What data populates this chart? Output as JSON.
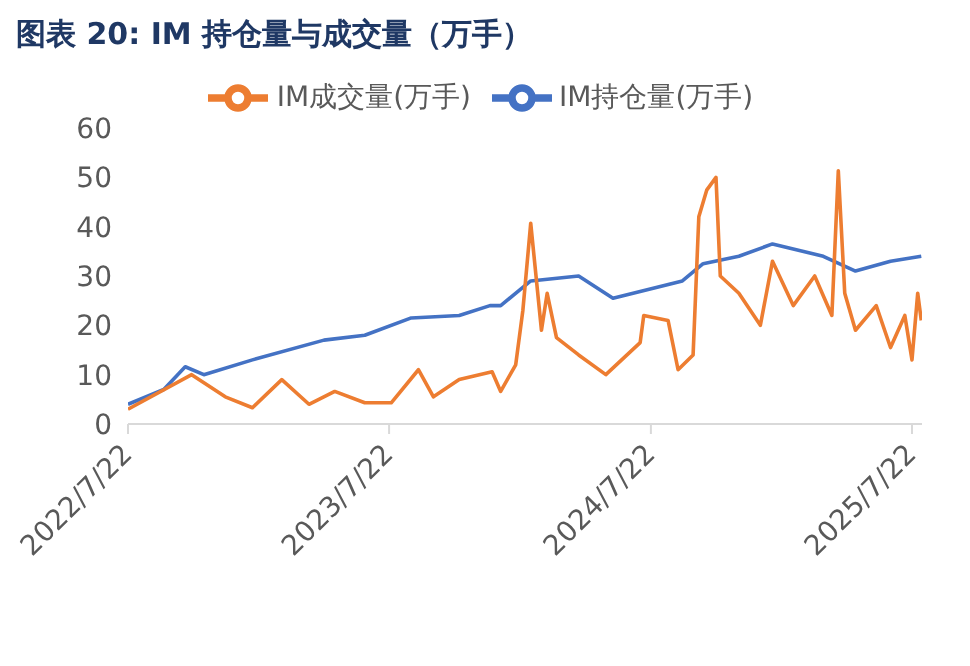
{
  "chart_data": {
    "type": "line",
    "title": "图表 20:  IM 持仓量与成交量（万手）",
    "xlim": [
      "2022-07-22",
      "2025-08-05"
    ],
    "xticks": [
      {
        "value": "2022-07-22",
        "label": "2022/7/22"
      },
      {
        "value": "2023-07-22",
        "label": "2023/7/22"
      },
      {
        "value": "2024-07-22",
        "label": "2024/7/22"
      },
      {
        "value": "2025-07-22",
        "label": "2025/7/22"
      }
    ],
    "ylim": [
      0,
      60
    ],
    "yticks": [
      0,
      10,
      20,
      30,
      40,
      50,
      60
    ],
    "grid": false,
    "legend": "top",
    "marker": "none",
    "series": [
      {
        "name": "IM持仓量(万手)",
        "color": "#4472c4",
        "x": [
          "2022-07-22",
          "2022-09-10",
          "2022-10-10",
          "2022-11-05",
          "2023-01-12",
          "2023-04-22",
          "2023-06-18",
          "2023-08-22",
          "2023-10-28",
          "2023-12-10",
          "2023-12-25",
          "2024-02-05",
          "2024-04-12",
          "2024-05-30",
          "2024-09-04",
          "2024-10-03",
          "2024-11-22",
          "2025-01-08",
          "2025-03-20",
          "2025-05-04",
          "2025-06-22",
          "2025-08-04"
        ],
        "values": [
          4,
          7,
          11.6,
          10,
          13,
          17,
          18,
          21.5,
          22,
          24,
          24,
          29,
          30,
          25.5,
          29,
          32.5,
          34,
          36.5,
          34,
          31,
          33,
          34
        ]
      },
      {
        "name": "IM成交量(万手)",
        "color": "#ed7d31",
        "x": [
          "2022-07-22",
          "2022-10-19",
          "2022-12-05",
          "2023-01-12",
          "2023-02-22",
          "2023-04-01",
          "2023-05-07",
          "2023-06-18",
          "2023-07-25",
          "2023-09-01",
          "2023-09-22",
          "2023-10-28",
          "2023-12-13",
          "2023-12-25",
          "2024-01-15",
          "2024-01-25",
          "2024-02-05",
          "2024-02-20",
          "2024-02-28",
          "2024-03-12",
          "2024-04-12",
          "2024-05-20",
          "2024-07-07",
          "2024-07-12",
          "2024-08-15",
          "2024-08-29",
          "2024-09-19",
          "2024-09-27",
          "2024-10-08",
          "2024-10-21",
          "2024-10-27",
          "2024-11-22",
          "2024-12-22",
          "2025-01-08",
          "2025-02-06",
          "2025-03-08",
          "2025-04-01",
          "2025-04-10",
          "2025-04-19",
          "2025-05-04",
          "2025-06-02",
          "2025-06-22",
          "2025-07-12",
          "2025-07-22",
          "2025-07-30",
          "2025-08-04"
        ],
        "values": [
          3,
          10,
          5.5,
          3.3,
          9,
          4,
          6.6,
          4.3,
          4.3,
          11,
          5.5,
          9,
          10.6,
          6.6,
          12,
          23,
          40.7,
          19,
          26.5,
          17.5,
          14,
          10,
          16.5,
          22,
          21,
          11,
          14,
          42,
          47.4,
          50,
          30,
          26.5,
          20,
          33,
          24,
          30,
          22,
          51.3,
          26.5,
          19,
          24,
          15.5,
          22,
          13,
          26.5,
          21
        ]
      }
    ]
  }
}
